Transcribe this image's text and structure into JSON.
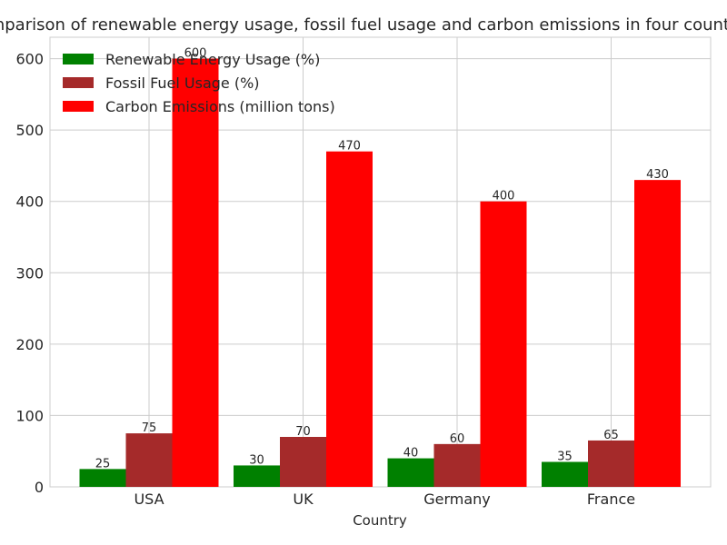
{
  "chart_data": {
    "type": "bar",
    "title": "Comparison of renewable energy usage, fossil fuel usage and carbon emissions in four countries",
    "xlabel": "Country",
    "ylabel": "",
    "categories": [
      "USA",
      "UK",
      "Germany",
      "France"
    ],
    "series": [
      {
        "name": "Renewable Energy Usage (%)",
        "values": [
          25,
          30,
          40,
          35
        ],
        "color": "#008000"
      },
      {
        "name": "Fossil Fuel Usage (%)",
        "values": [
          75,
          70,
          60,
          65
        ],
        "color": "#a52a2a"
      },
      {
        "name": "Carbon Emissions (million tons)",
        "values": [
          600,
          470,
          400,
          430
        ],
        "color": "#ff0000"
      }
    ],
    "ylim": [
      0,
      630
    ],
    "yticks": [
      0,
      100,
      200,
      300,
      400,
      500,
      600
    ],
    "grid": true,
    "legend": "top-left"
  }
}
